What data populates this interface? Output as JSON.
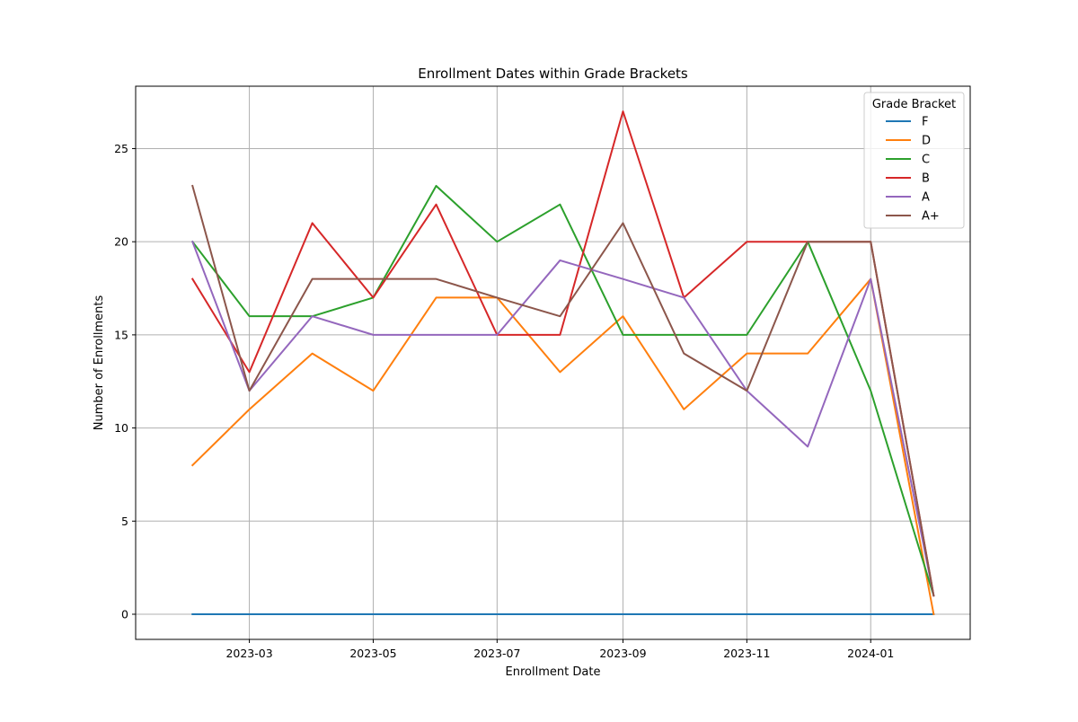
{
  "chart_data": {
    "type": "line",
    "title": "Enrollment Dates within Grade Brackets",
    "xlabel": "Enrollment Date",
    "ylabel": "Number of Enrollments",
    "x": [
      "2023-02-01",
      "2023-03-01",
      "2023-04-01",
      "2023-05-01",
      "2023-06-01",
      "2023-07-01",
      "2023-08-01",
      "2023-09-01",
      "2023-10-01",
      "2023-11-01",
      "2023-12-01",
      "2024-01-01",
      "2024-02-01"
    ],
    "x_range": [
      "2023-01-04",
      "2024-02-19"
    ],
    "ylim": [
      -1.35,
      28.35
    ],
    "x_ticks": [
      {
        "date": "2023-03-01",
        "label": "2023-03"
      },
      {
        "date": "2023-05-01",
        "label": "2023-05"
      },
      {
        "date": "2023-07-01",
        "label": "2023-07"
      },
      {
        "date": "2023-09-01",
        "label": "2023-09"
      },
      {
        "date": "2023-11-01",
        "label": "2023-11"
      },
      {
        "date": "2024-01-01",
        "label": "2024-01"
      }
    ],
    "y_ticks": [
      0,
      5,
      10,
      15,
      20,
      25
    ],
    "grid": true,
    "legend": {
      "title": "Grade Bracket",
      "position": "top-right"
    },
    "series": [
      {
        "name": "F",
        "color": "#1f77b4",
        "values": [
          0,
          0,
          0,
          0,
          0,
          0,
          0,
          0,
          0,
          0,
          0,
          0,
          0
        ]
      },
      {
        "name": "D",
        "color": "#ff7f0e",
        "values": [
          8,
          11,
          14,
          12,
          17,
          17,
          13,
          16,
          11,
          14,
          14,
          18,
          0
        ]
      },
      {
        "name": "C",
        "color": "#2ca02c",
        "values": [
          20,
          16,
          16,
          17,
          23,
          20,
          22,
          15,
          15,
          15,
          20,
          12,
          1
        ]
      },
      {
        "name": "B",
        "color": "#d62728",
        "values": [
          18,
          13,
          21,
          17,
          22,
          15,
          15,
          27,
          17,
          20,
          20,
          20,
          1
        ]
      },
      {
        "name": "A",
        "color": "#9467bd",
        "values": [
          20,
          12,
          16,
          15,
          15,
          15,
          19,
          18,
          17,
          12,
          9,
          18,
          1
        ]
      },
      {
        "name": "A+",
        "color": "#8c564b",
        "values": [
          23,
          12,
          18,
          18,
          18,
          17,
          16,
          21,
          14,
          12,
          20,
          20,
          1
        ]
      }
    ]
  }
}
